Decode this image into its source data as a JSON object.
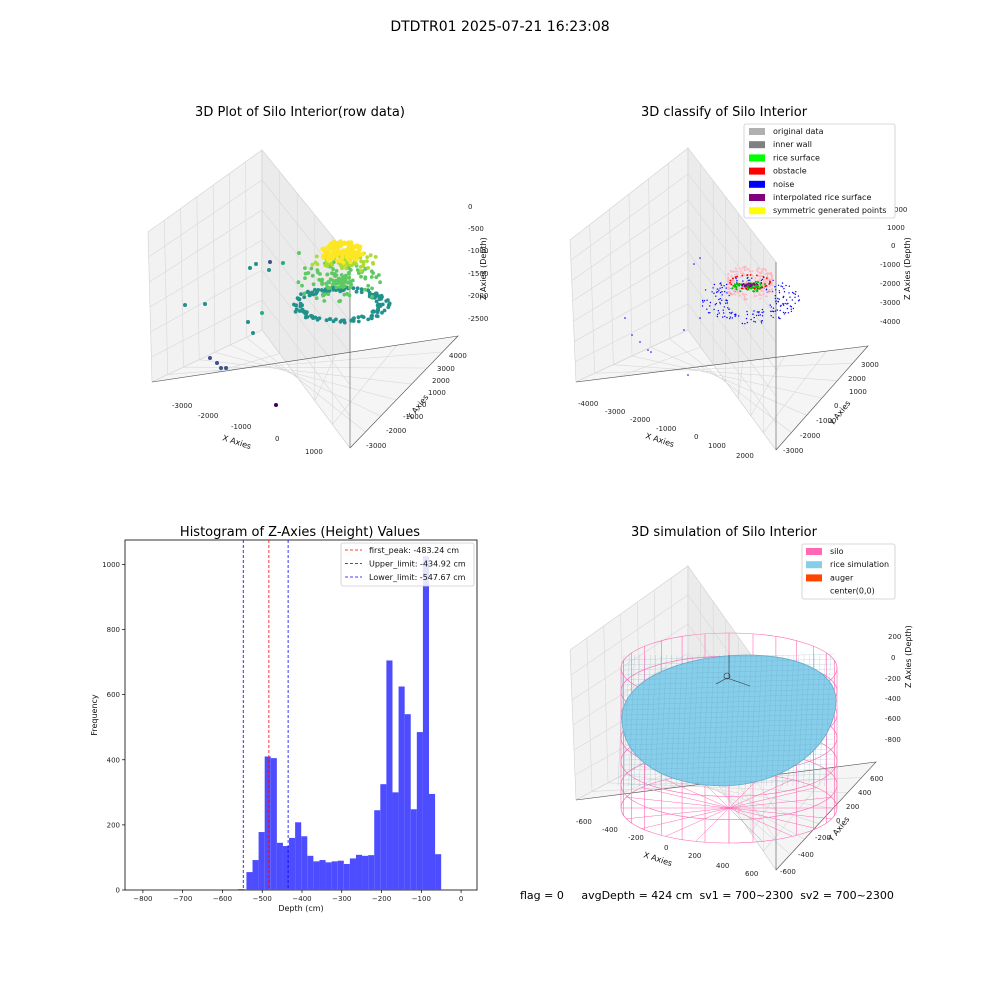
{
  "figure": {
    "suptitle": "DTDTR01 2025-07-21 16:23:08",
    "footer": "flag = 0     avgDepth = 424 cm  sv1 = 700~2300  sv2 = 700~2300"
  },
  "chart_data": [
    {
      "type": "scatter3d",
      "title": "3D Plot of Silo Interior(row data)",
      "xlabel": "X Axies",
      "ylabel": "Y Axies",
      "zlabel": "Z Axies (Depth)",
      "x_ticks": [
        "-3000",
        "-2000",
        "-1000",
        "0",
        "1000"
      ],
      "y_ticks": [
        "-3000",
        "-2000",
        "-1000",
        "0",
        "1000",
        "2000",
        "3000",
        "4000"
      ],
      "z_ticks": [
        "0",
        "-500",
        "-1000",
        "-1500",
        "-2000",
        "-2500"
      ],
      "colormap": "viridis",
      "grid": true
    },
    {
      "type": "scatter3d",
      "title": "3D classify of Silo Interior",
      "xlabel": "X Axies",
      "ylabel": "Y Axies",
      "zlabel": "Z Axies (Depth)",
      "x_ticks": [
        "-4000",
        "-3000",
        "-2000",
        "-1000",
        "0",
        "1000",
        "2000"
      ],
      "y_ticks": [
        "-3000",
        "-2000",
        "-1000",
        "0",
        "1000",
        "2000",
        "3000"
      ],
      "z_ticks": [
        "2000",
        "1000",
        "0",
        "-1000",
        "-2000",
        "-3000",
        "-4000"
      ],
      "z_tick_partial": "000",
      "legend": [
        {
          "label": "original data",
          "color": "#b0b0b0"
        },
        {
          "label": "inner wall",
          "color": "#808080"
        },
        {
          "label": "rice surface",
          "color": "#00ff00"
        },
        {
          "label": "obstacle",
          "color": "#ff0000"
        },
        {
          "label": "noise",
          "color": "#0000ff"
        },
        {
          "label": "interpolated rice surface",
          "color": "#800080"
        },
        {
          "label": "symmetric generated points",
          "color": "#ffff00"
        }
      ],
      "legend_placement": "top-right",
      "grid": true
    },
    {
      "type": "bar",
      "title": "Histogram of Z-Axies (Height) Values",
      "xlabel": "Depth (cm)",
      "ylabel": "Frequency",
      "xlim": [
        -845,
        40
      ],
      "ylim": [
        0,
        1075
      ],
      "x_ticks": [
        -800,
        -700,
        -600,
        -500,
        -400,
        -300,
        -200,
        -100,
        0
      ],
      "y_ticks": [
        0,
        200,
        400,
        600,
        800,
        1000
      ],
      "bin_start": -555,
      "bin_width": 15.3,
      "values": [
        2,
        55,
        92,
        178,
        410,
        405,
        145,
        135,
        160,
        208,
        165,
        105,
        88,
        92,
        85,
        88,
        90,
        80,
        97,
        108,
        105,
        107,
        245,
        325,
        705,
        300,
        625,
        540,
        248,
        485,
        1025,
        295,
        110
      ],
      "tail_bins": [
        {
          "x": -650,
          "v": 2
        },
        {
          "x": -600,
          "v": 2
        },
        {
          "x": -560,
          "v": 3
        }
      ],
      "bar_color": "#4d4dff",
      "lines": [
        {
          "label": "first_peak: -483.24 cm",
          "x": -483.24,
          "color": "#ff0000"
        },
        {
          "label": "Upper_limit: -434.92 cm",
          "x": -434.92,
          "color": "#0000ff"
        },
        {
          "label": "Lower_limit: -547.67 cm",
          "x": -547.67,
          "color": "#0000ff"
        }
      ],
      "legend_placement": "top-right"
    },
    {
      "type": "surface3d",
      "title": "3D simulation of Silo Interior",
      "xlabel": "X Axies",
      "ylabel": "Y Axies",
      "zlabel": "Z Axies (Depth)",
      "x_ticks": [
        "-600",
        "-400",
        "-200",
        "0",
        "200",
        "400",
        "600"
      ],
      "y_ticks": [
        "-600",
        "-400",
        "-200",
        "0",
        "200",
        "400",
        "600"
      ],
      "z_ticks": [
        "200",
        "0",
        "-200",
        "-400",
        "-600",
        "-800"
      ],
      "legend": [
        {
          "label": "silo",
          "color": "#ff69b4"
        },
        {
          "label": "rice simulation",
          "color": "#87ceeb"
        },
        {
          "label": "auger",
          "color": "#ff4500"
        },
        {
          "label": "center(0,0)",
          "color": ""
        }
      ],
      "legend_placement": "top-right",
      "grid": true
    }
  ]
}
